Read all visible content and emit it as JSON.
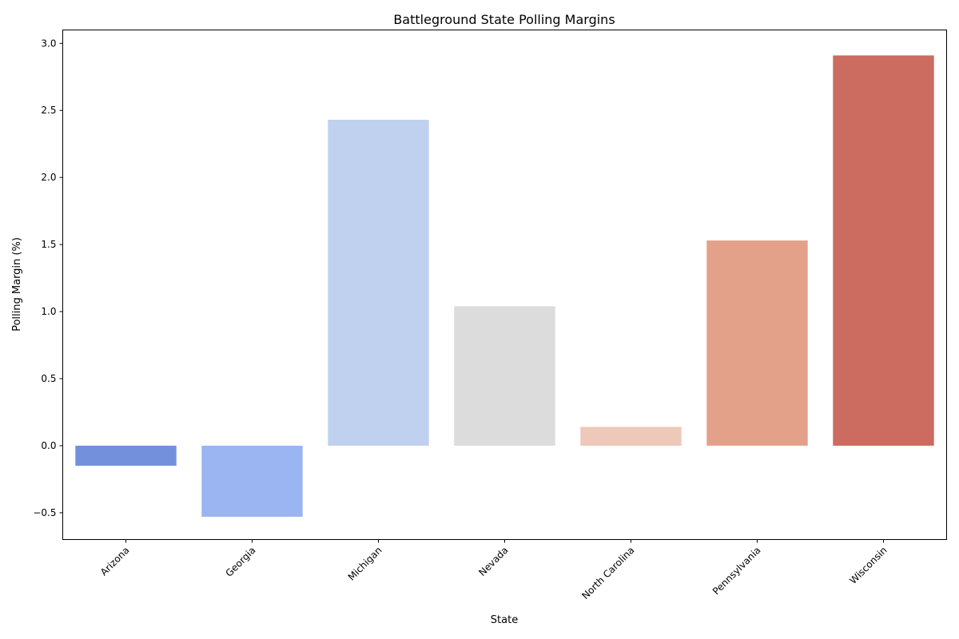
{
  "chart_data": {
    "type": "bar",
    "title": "Battleground State Polling Margins",
    "xlabel": "State",
    "ylabel": "Polling Margin (%)",
    "categories": [
      "Arizona",
      "Georgia",
      "Michigan",
      "Nevada",
      "North Carolina",
      "Pennsylvania",
      "Wisconsin"
    ],
    "values": [
      -0.15,
      -0.53,
      2.43,
      1.04,
      0.14,
      1.53,
      2.91
    ],
    "colors": [
      "#7390dd",
      "#9bb5f2",
      "#c0d1ef",
      "#dcdcdc",
      "#eec8b8",
      "#e3a18a",
      "#cc6b5f"
    ],
    "ylim": [
      -0.7,
      3.1
    ],
    "yticks": [
      -0.5,
      0.0,
      0.5,
      1.0,
      1.5,
      2.0,
      2.5,
      3.0
    ],
    "ytick_labels": [
      "−0.5",
      "0.0",
      "0.5",
      "1.0",
      "1.5",
      "2.0",
      "2.5",
      "3.0"
    ],
    "grid": false,
    "legend": "none"
  }
}
